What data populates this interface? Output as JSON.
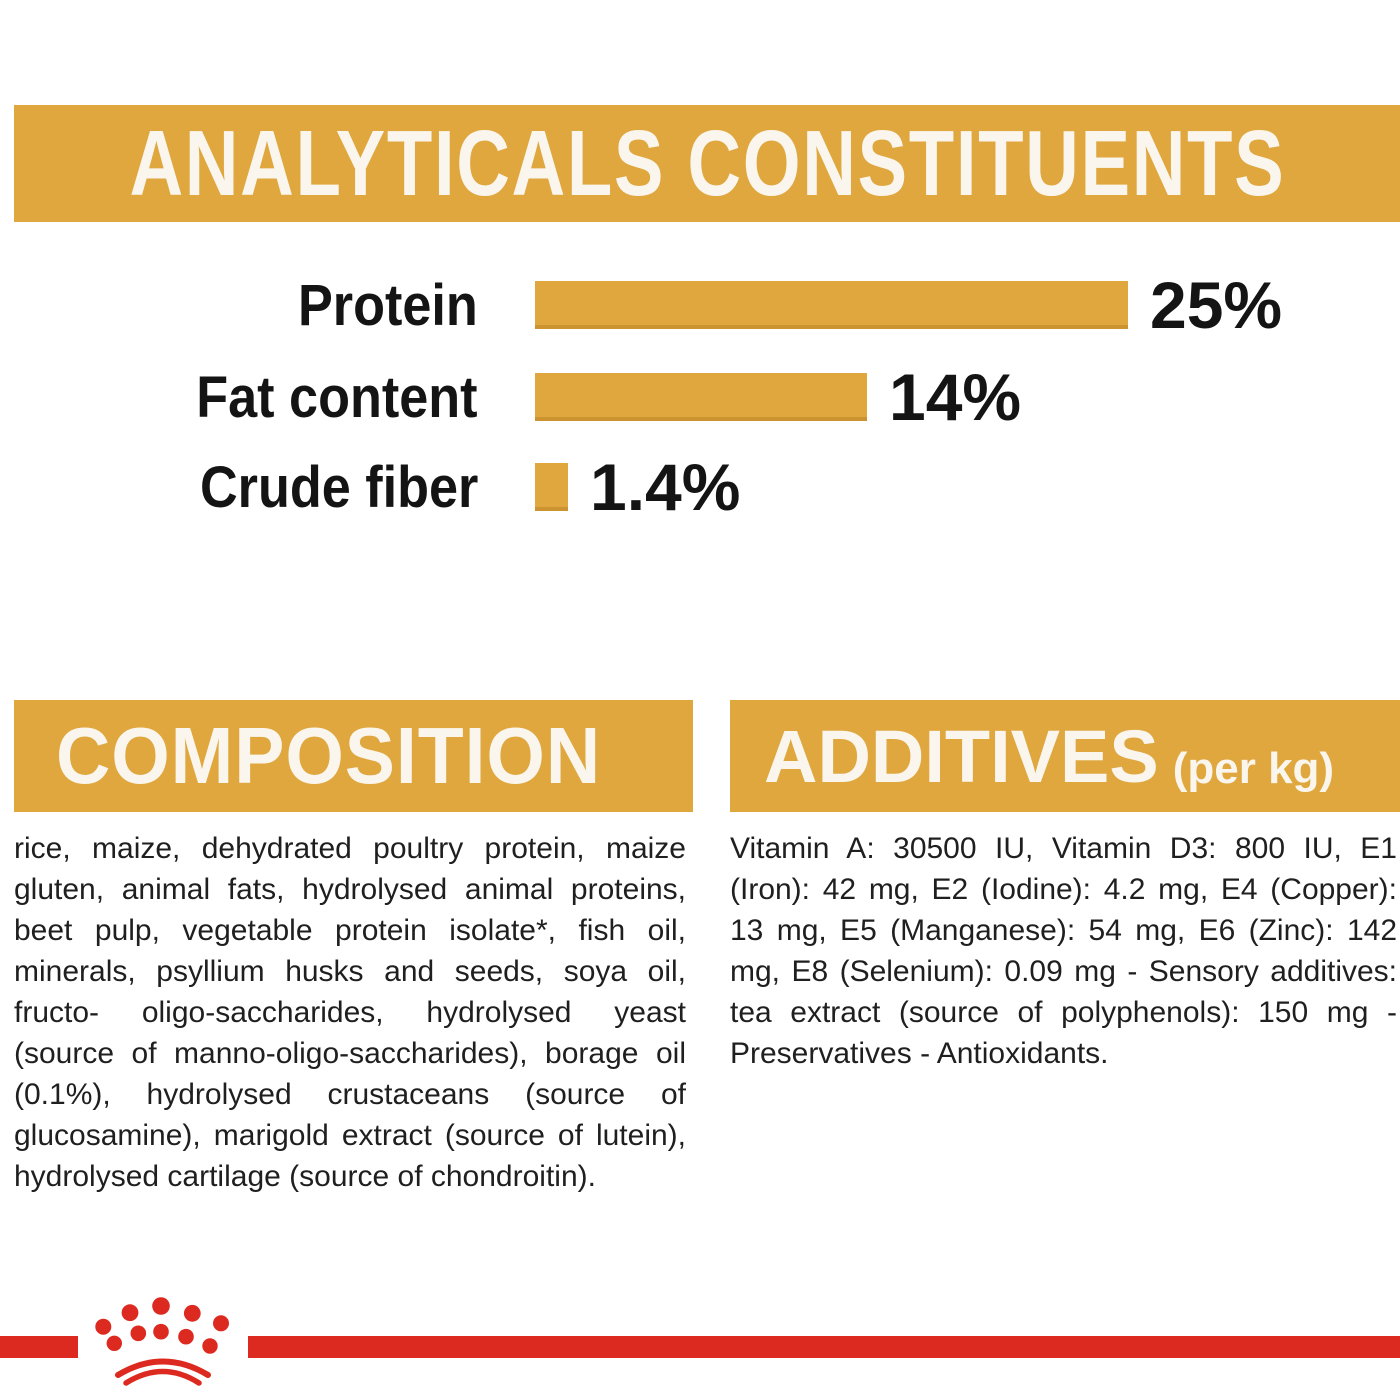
{
  "page": {
    "background": "#ffffff",
    "accent_gold": "#dfa73e",
    "accent_red": "#dd2a20",
    "text_color": "#1f1f1f"
  },
  "analyticals": {
    "title": "ANALYTICALS CONSTITUENTS"
  },
  "chart_data": {
    "type": "bar",
    "orientation": "horizontal",
    "title": "ANALYTICALS CONSTITUENTS",
    "categories": [
      "Protein",
      "Fat content",
      "Crude fiber"
    ],
    "values": [
      25,
      14,
      1.4
    ],
    "value_labels": [
      "25%",
      "14%",
      "1.4%"
    ],
    "xlim": [
      0,
      25
    ],
    "bar_color": "#dfa73e",
    "grid": false,
    "legend": false
  },
  "composition": {
    "title": "COMPOSITION",
    "text": "rice, maize, dehydrated poultry protein, maize gluten, animal fats, hydrolysed animal proteins, beet pulp, vegetable protein isolate*, fish oil, minerals, psyllium husks and seeds, soya oil, fructo- oligo-saccharides, hydrolysed yeast (source of manno-oligo-saccharides), borage oil (0.1%), hydrolysed crustaceans (source of glucosamine), marigold extract (source of lutein), hydrolysed cartilage (source of chondroitin)."
  },
  "additives": {
    "title": "ADDITIVES",
    "unit": "(per kg)",
    "text": "Vitamin A: 30500 IU, Vitamin D3: 800 IU, E1 (Iron): 42 mg, E2 (Iodine): 4.2 mg, E4 (Copper): 13 mg, E5 (Manganese): 54 mg, E6 (Zinc): 142 mg, E8 (Selenium): 0.09 mg - Sensory additives: tea extract (source of polyphenols): 150 mg - Preservatives - Antioxidants."
  },
  "footer": {
    "brand_logo": "royal-canin-crown"
  }
}
